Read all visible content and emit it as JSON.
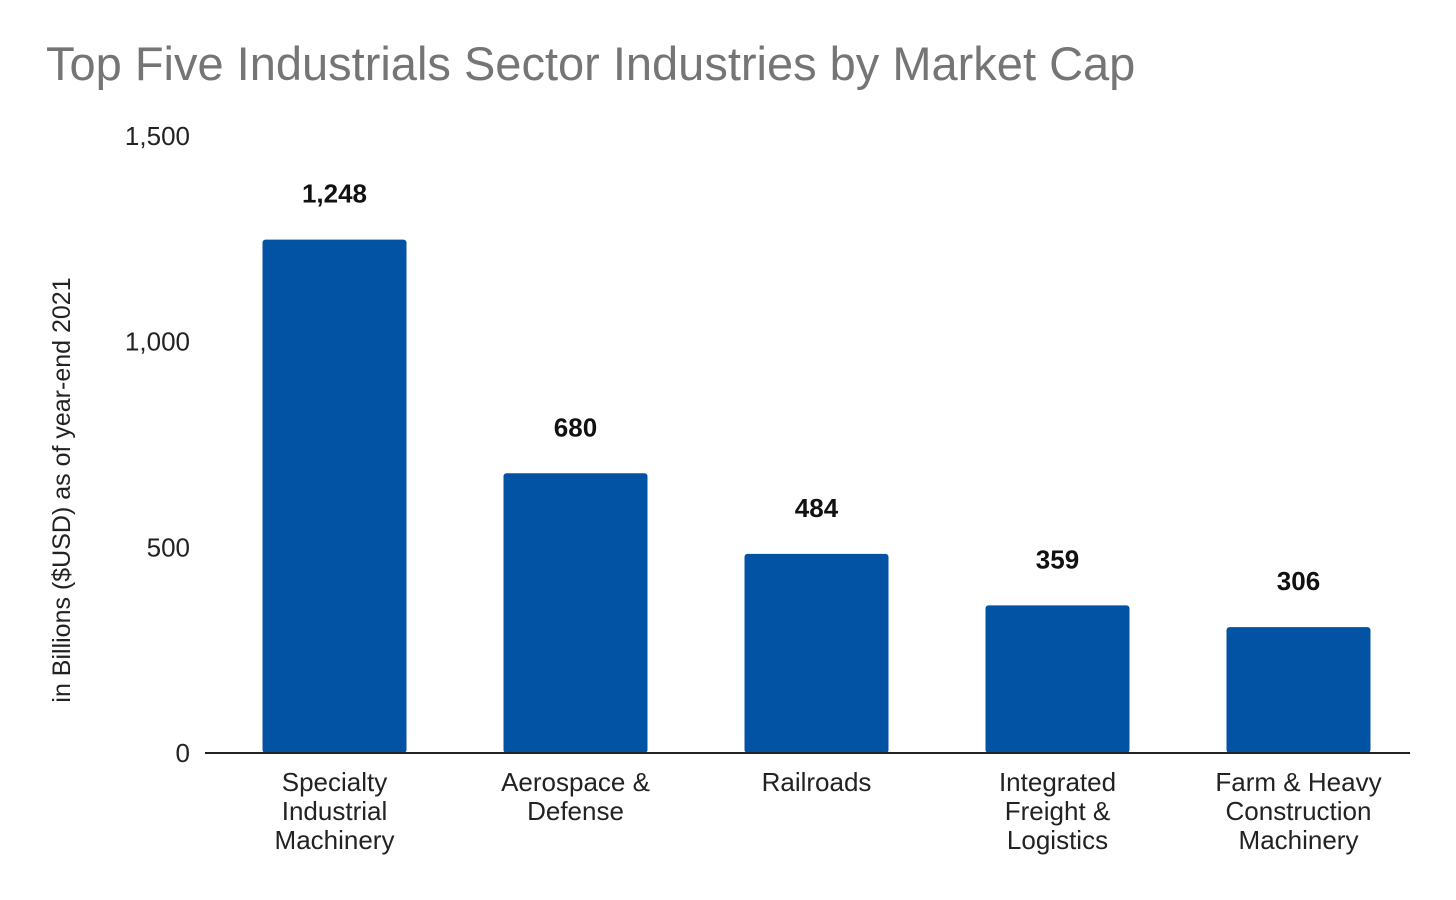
{
  "chart_data": {
    "type": "bar",
    "title": "Top Five Industrials Sector Industries by Market Cap",
    "xlabel": "",
    "ylabel": "in Billions ($USD) as of year-end 2021",
    "categories": [
      [
        "Specialty",
        "Industrial",
        "Machinery"
      ],
      [
        "Aerospace &",
        "Defense"
      ],
      [
        "Railroads"
      ],
      [
        "Integrated",
        "Freight &",
        "Logistics"
      ],
      [
        "Farm & Heavy",
        "Construction",
        "Machinery"
      ]
    ],
    "values": [
      1248,
      680,
      484,
      359,
      306
    ],
    "value_labels": [
      "1,248",
      "680",
      "484",
      "359",
      "306"
    ],
    "ylim": [
      0,
      1500
    ],
    "yticks": [
      0,
      500,
      1000,
      1500
    ],
    "ytick_labels": [
      "0",
      "500",
      "1,000",
      "1,500"
    ],
    "grid": false,
    "legend": "none",
    "bar_color": "#0353a4"
  }
}
